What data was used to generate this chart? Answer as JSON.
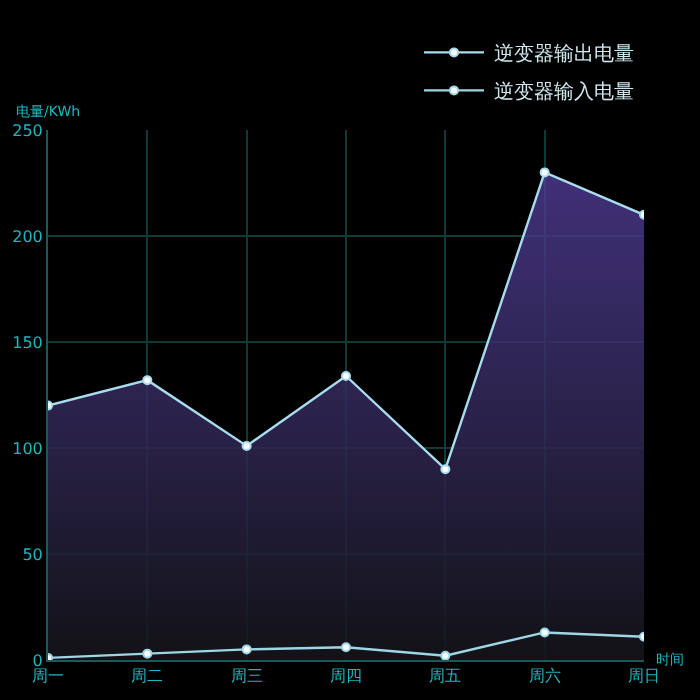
{
  "chart_data": {
    "type": "line",
    "ylabel": "电量/KWh",
    "xlabel": "时间",
    "categories": [
      "周一",
      "周二",
      "周三",
      "周四",
      "周五",
      "周六",
      "周日"
    ],
    "ylim": [
      0,
      250
    ],
    "yticks": [
      0,
      50,
      100,
      150,
      200,
      250
    ],
    "grid": true,
    "legend": "top right",
    "marker": "circle",
    "series": [
      {
        "name": "逆变器输出电量",
        "type": "area",
        "color": "#a9dcef",
        "values": [
          120,
          132,
          101,
          134,
          90,
          230,
          210
        ]
      },
      {
        "name": "逆变器输入电量",
        "color": "#9fd6e6",
        "values": [
          1,
          3,
          5,
          6,
          2,
          13,
          11
        ]
      }
    ]
  }
}
